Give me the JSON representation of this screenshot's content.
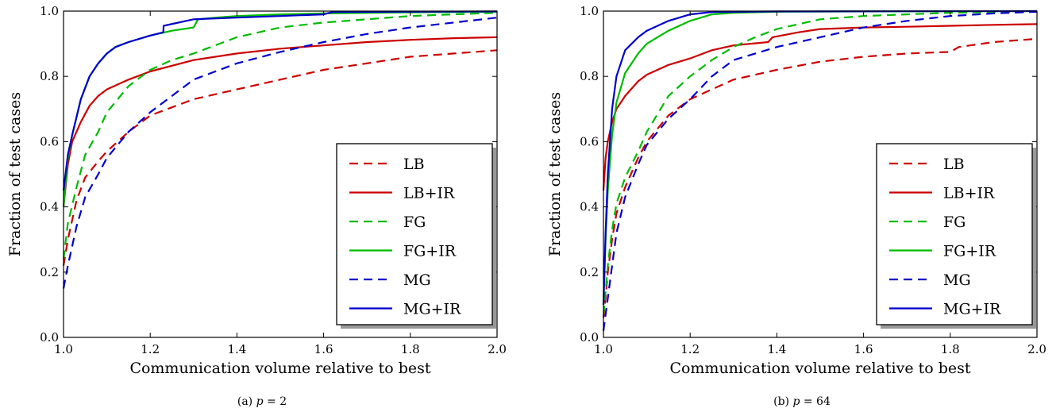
{
  "chart_data": [
    {
      "type": "line",
      "caption": "(a) p = 2",
      "caption_prefix": "(a) ",
      "caption_var": "p",
      "caption_value": "= 2",
      "xlabel": "Communication volume relative to best",
      "ylabel": "Fraction of test cases",
      "xlim": [
        1.0,
        2.0
      ],
      "ylim": [
        0.0,
        1.0
      ],
      "xticks": [
        "1.0",
        "1.2",
        "1.4",
        "1.6",
        "1.8",
        "2.0"
      ],
      "yticks": [
        "0.0",
        "0.2",
        "0.4",
        "0.6",
        "0.8",
        "1.0"
      ],
      "grid": false,
      "legend_position": "lower-right",
      "series": [
        {
          "name": "LB",
          "color": "#cc0000",
          "dashed": true,
          "x": [
            1.0,
            1.01,
            1.03,
            1.05,
            1.08,
            1.1,
            1.15,
            1.2,
            1.3,
            1.4,
            1.5,
            1.6,
            1.7,
            1.8,
            1.9,
            2.0
          ],
          "y": [
            0.22,
            0.3,
            0.42,
            0.49,
            0.54,
            0.57,
            0.63,
            0.68,
            0.73,
            0.76,
            0.79,
            0.82,
            0.84,
            0.86,
            0.87,
            0.88
          ]
        },
        {
          "name": "LB+IR",
          "color": "#cc0000",
          "dashed": false,
          "x": [
            1.0,
            1.01,
            1.02,
            1.04,
            1.06,
            1.08,
            1.1,
            1.15,
            1.2,
            1.3,
            1.4,
            1.5,
            1.6,
            1.7,
            1.8,
            1.9,
            2.0
          ],
          "y": [
            0.4,
            0.53,
            0.6,
            0.66,
            0.71,
            0.74,
            0.76,
            0.79,
            0.815,
            0.85,
            0.87,
            0.885,
            0.895,
            0.905,
            0.912,
            0.917,
            0.92
          ]
        },
        {
          "name": "FG",
          "color": "#00bb00",
          "dashed": true,
          "x": [
            1.0,
            1.01,
            1.03,
            1.05,
            1.08,
            1.1,
            1.15,
            1.2,
            1.25,
            1.3,
            1.4,
            1.5,
            1.6,
            1.7,
            1.8,
            1.9,
            2.0
          ],
          "y": [
            0.24,
            0.35,
            0.46,
            0.56,
            0.63,
            0.69,
            0.77,
            0.82,
            0.85,
            0.87,
            0.92,
            0.95,
            0.965,
            0.975,
            0.985,
            0.99,
            0.995
          ]
        },
        {
          "name": "FG+IR",
          "color": "#00bb00",
          "dashed": false,
          "x": [
            1.0,
            1.01,
            1.02,
            1.04,
            1.06,
            1.08,
            1.1,
            1.12,
            1.15,
            1.2,
            1.25,
            1.3,
            1.31,
            1.35,
            1.4,
            1.5,
            1.6,
            1.8,
            2.0
          ],
          "y": [
            0.4,
            0.55,
            0.62,
            0.73,
            0.8,
            0.84,
            0.87,
            0.89,
            0.905,
            0.925,
            0.94,
            0.95,
            0.975,
            0.98,
            0.985,
            0.99,
            0.993,
            0.996,
            0.998
          ]
        },
        {
          "name": "MG",
          "color": "#0000cc",
          "dashed": true,
          "x": [
            1.0,
            1.01,
            1.03,
            1.05,
            1.08,
            1.1,
            1.15,
            1.2,
            1.25,
            1.3,
            1.4,
            1.5,
            1.6,
            1.7,
            1.8,
            1.9,
            2.0
          ],
          "y": [
            0.15,
            0.22,
            0.34,
            0.43,
            0.5,
            0.55,
            0.63,
            0.69,
            0.74,
            0.79,
            0.84,
            0.875,
            0.905,
            0.93,
            0.95,
            0.965,
            0.98
          ]
        },
        {
          "name": "MG+IR",
          "color": "#0000cc",
          "dashed": false,
          "x": [
            1.0,
            1.01,
            1.02,
            1.04,
            1.06,
            1.08,
            1.1,
            1.12,
            1.15,
            1.2,
            1.23,
            1.231,
            1.3,
            1.4,
            1.5,
            1.6,
            1.62,
            1.8,
            2.0
          ],
          "y": [
            0.45,
            0.56,
            0.62,
            0.73,
            0.8,
            0.84,
            0.87,
            0.89,
            0.905,
            0.925,
            0.935,
            0.955,
            0.975,
            0.98,
            0.985,
            0.99,
            0.997,
            0.998,
            0.999
          ]
        }
      ]
    },
    {
      "type": "line",
      "caption": "(b) p = 64",
      "caption_prefix": "(b) ",
      "caption_var": "p",
      "caption_value": "= 64",
      "xlabel": "Communication volume relative to best",
      "ylabel": "Fraction of test cases",
      "xlim": [
        1.0,
        2.0
      ],
      "ylim": [
        0.0,
        1.0
      ],
      "xticks": [
        "1.0",
        "1.2",
        "1.4",
        "1.6",
        "1.8",
        "2.0"
      ],
      "yticks": [
        "0.0",
        "0.2",
        "0.4",
        "0.6",
        "0.8",
        "1.0"
      ],
      "grid": false,
      "legend_position": "lower-right",
      "series": [
        {
          "name": "LB",
          "color": "#cc0000",
          "dashed": true,
          "x": [
            1.0,
            1.005,
            1.01,
            1.02,
            1.03,
            1.05,
            1.08,
            1.1,
            1.15,
            1.2,
            1.3,
            1.4,
            1.5,
            1.6,
            1.7,
            1.8,
            1.82,
            1.9,
            2.0
          ],
          "y": [
            0.06,
            0.12,
            0.2,
            0.3,
            0.38,
            0.46,
            0.55,
            0.6,
            0.68,
            0.73,
            0.79,
            0.82,
            0.845,
            0.86,
            0.87,
            0.875,
            0.89,
            0.905,
            0.915
          ]
        },
        {
          "name": "LB+IR",
          "color": "#cc0000",
          "dashed": false,
          "x": [
            1.0,
            1.005,
            1.01,
            1.02,
            1.03,
            1.05,
            1.08,
            1.1,
            1.15,
            1.2,
            1.25,
            1.3,
            1.38,
            1.39,
            1.45,
            1.5,
            1.6,
            1.7,
            1.8,
            1.9,
            2.0
          ],
          "y": [
            0.45,
            0.55,
            0.6,
            0.66,
            0.7,
            0.74,
            0.785,
            0.805,
            0.835,
            0.855,
            0.88,
            0.895,
            0.905,
            0.92,
            0.935,
            0.945,
            0.95,
            0.952,
            0.955,
            0.958,
            0.96
          ]
        },
        {
          "name": "FG",
          "color": "#00bb00",
          "dashed": true,
          "x": [
            1.0,
            1.005,
            1.01,
            1.02,
            1.03,
            1.05,
            1.08,
            1.1,
            1.15,
            1.2,
            1.25,
            1.3,
            1.35,
            1.4,
            1.5,
            1.6,
            1.7,
            1.8,
            1.9,
            2.0
          ],
          "y": [
            0.07,
            0.14,
            0.22,
            0.33,
            0.41,
            0.49,
            0.57,
            0.63,
            0.74,
            0.8,
            0.85,
            0.89,
            0.92,
            0.945,
            0.975,
            0.985,
            0.99,
            0.995,
            0.997,
            0.998
          ]
        },
        {
          "name": "FG+IR",
          "color": "#00bb00",
          "dashed": false,
          "x": [
            1.0,
            1.005,
            1.01,
            1.02,
            1.03,
            1.05,
            1.08,
            1.1,
            1.15,
            1.2,
            1.25,
            1.3,
            1.4,
            1.6,
            2.0
          ],
          "y": [
            0.1,
            0.3,
            0.45,
            0.62,
            0.72,
            0.81,
            0.87,
            0.9,
            0.94,
            0.97,
            0.99,
            0.995,
            0.998,
            0.999,
            1.0
          ]
        },
        {
          "name": "MG",
          "color": "#0000cc",
          "dashed": true,
          "x": [
            1.0,
            1.005,
            1.01,
            1.02,
            1.03,
            1.05,
            1.08,
            1.1,
            1.15,
            1.2,
            1.25,
            1.3,
            1.4,
            1.5,
            1.6,
            1.7,
            1.8,
            1.9,
            2.0
          ],
          "y": [
            0.02,
            0.07,
            0.12,
            0.22,
            0.32,
            0.43,
            0.53,
            0.59,
            0.67,
            0.73,
            0.8,
            0.85,
            0.89,
            0.92,
            0.95,
            0.97,
            0.985,
            0.993,
            0.998
          ]
        },
        {
          "name": "MG+IR",
          "color": "#0000cc",
          "dashed": false,
          "x": [
            1.0,
            1.005,
            1.01,
            1.02,
            1.03,
            1.05,
            1.08,
            1.1,
            1.15,
            1.2,
            1.25,
            1.4,
            2.0
          ],
          "y": [
            0.1,
            0.32,
            0.5,
            0.7,
            0.8,
            0.88,
            0.92,
            0.94,
            0.97,
            0.99,
            0.997,
            0.999,
            1.0
          ]
        }
      ]
    }
  ]
}
